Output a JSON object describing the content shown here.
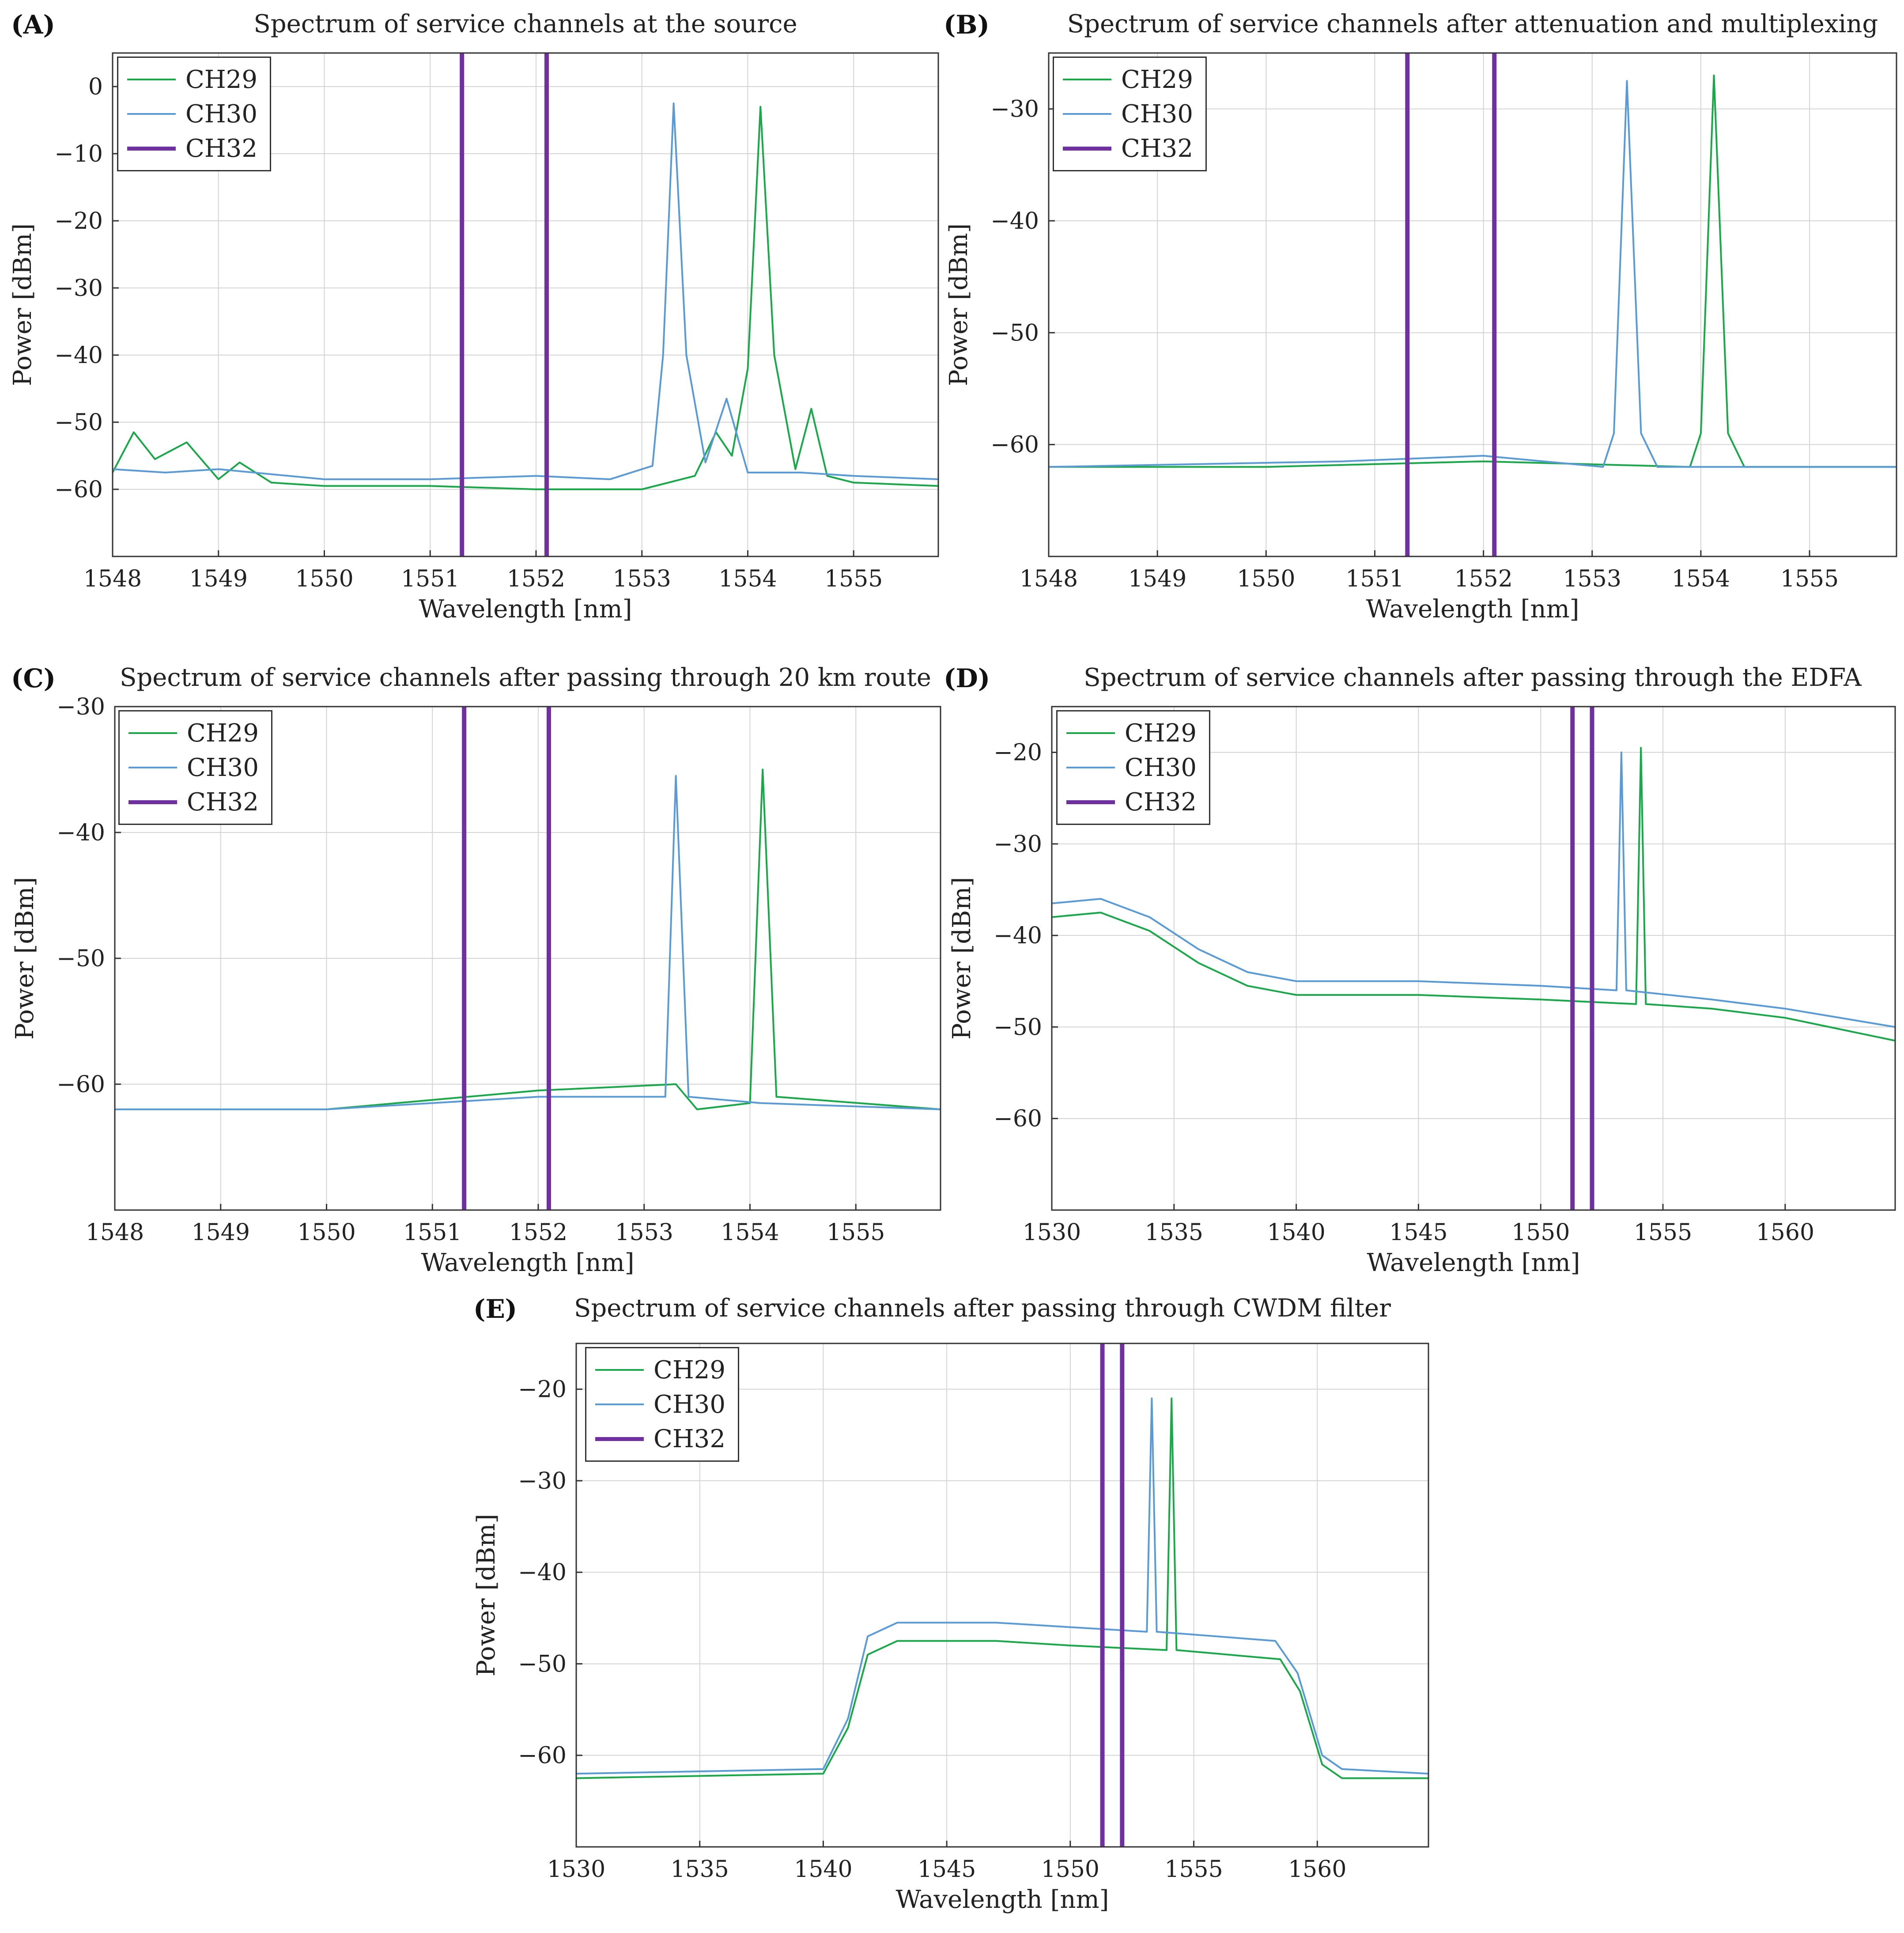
{
  "series_styles": {
    "CH29": {
      "color": "#1aa84a",
      "kind": "trace"
    },
    "CH30": {
      "color": "#5b9bd5",
      "kind": "trace"
    },
    "CH32": {
      "color": "#7030a0",
      "kind": "vline"
    }
  },
  "chart_data": [
    {
      "panel": "(A)",
      "type": "line",
      "title": "Spectrum of service channels at the source",
      "xlabel": "Wavelength [nm]",
      "ylabel": "Power [dBm]",
      "xlim": [
        1548,
        1555.8
      ],
      "ylim": [
        -70,
        5
      ],
      "xticks": [
        1548,
        1549,
        1550,
        1551,
        1552,
        1553,
        1554,
        1555
      ],
      "yticks": [
        0,
        -10,
        -20,
        -30,
        -40,
        -50,
        -60
      ],
      "grid": true,
      "legend": [
        "CH29",
        "CH30",
        "CH32"
      ],
      "legend_position": "top-left",
      "series": [
        {
          "name": "CH29",
          "values": [
            {
              "x": 1548.0,
              "y": -57.5
            },
            {
              "x": 1548.2,
              "y": -51.5
            },
            {
              "x": 1548.4,
              "y": -55.5
            },
            {
              "x": 1548.7,
              "y": -53.0
            },
            {
              "x": 1549.0,
              "y": -58.5
            },
            {
              "x": 1549.2,
              "y": -56.0
            },
            {
              "x": 1549.5,
              "y": -59.0
            },
            {
              "x": 1550.0,
              "y": -59.5
            },
            {
              "x": 1551.0,
              "y": -59.5
            },
            {
              "x": 1552.0,
              "y": -60.0
            },
            {
              "x": 1553.0,
              "y": -60.0
            },
            {
              "x": 1553.5,
              "y": -58.0
            },
            {
              "x": 1553.7,
              "y": -51.5
            },
            {
              "x": 1553.85,
              "y": -55.0
            },
            {
              "x": 1554.0,
              "y": -42.0
            },
            {
              "x": 1554.12,
              "y": -3.0
            },
            {
              "x": 1554.25,
              "y": -40.0
            },
            {
              "x": 1554.45,
              "y": -57.0
            },
            {
              "x": 1554.6,
              "y": -48.0
            },
            {
              "x": 1554.75,
              "y": -58.0
            },
            {
              "x": 1555.0,
              "y": -59.0
            },
            {
              "x": 1555.8,
              "y": -59.5
            }
          ]
        },
        {
          "name": "CH30",
          "values": [
            {
              "x": 1548.0,
              "y": -57.0
            },
            {
              "x": 1548.5,
              "y": -57.5
            },
            {
              "x": 1549.0,
              "y": -57.0
            },
            {
              "x": 1550.0,
              "y": -58.5
            },
            {
              "x": 1551.0,
              "y": -58.5
            },
            {
              "x": 1552.0,
              "y": -58.0
            },
            {
              "x": 1552.7,
              "y": -58.5
            },
            {
              "x": 1553.1,
              "y": -56.5
            },
            {
              "x": 1553.2,
              "y": -40.0
            },
            {
              "x": 1553.3,
              "y": -2.5
            },
            {
              "x": 1553.42,
              "y": -40.0
            },
            {
              "x": 1553.6,
              "y": -56.0
            },
            {
              "x": 1553.8,
              "y": -46.5
            },
            {
              "x": 1554.0,
              "y": -57.5
            },
            {
              "x": 1554.5,
              "y": -57.5
            },
            {
              "x": 1555.0,
              "y": -58.0
            },
            {
              "x": 1555.8,
              "y": -58.5
            }
          ]
        },
        {
          "name": "CH32",
          "vlines": [
            1551.3,
            1552.1
          ]
        }
      ]
    },
    {
      "panel": "(B)",
      "type": "line",
      "title": "Spectrum of service channels after attenuation and multiplexing",
      "xlabel": "Wavelength [nm]",
      "ylabel": "Power [dBm]",
      "xlim": [
        1548,
        1555.8
      ],
      "ylim": [
        -70,
        -25
      ],
      "xticks": [
        1548,
        1549,
        1550,
        1551,
        1552,
        1553,
        1554,
        1555
      ],
      "yticks": [
        -30,
        -40,
        -50,
        -60
      ],
      "grid": true,
      "legend": [
        "CH29",
        "CH30",
        "CH32"
      ],
      "legend_position": "top-left",
      "series": [
        {
          "name": "CH29",
          "values": [
            {
              "x": 1548.0,
              "y": -62.0
            },
            {
              "x": 1550.0,
              "y": -62.0
            },
            {
              "x": 1552.0,
              "y": -61.5
            },
            {
              "x": 1553.9,
              "y": -62.0
            },
            {
              "x": 1554.0,
              "y": -59.0
            },
            {
              "x": 1554.12,
              "y": -27.0
            },
            {
              "x": 1554.25,
              "y": -59.0
            },
            {
              "x": 1554.4,
              "y": -62.0
            },
            {
              "x": 1555.8,
              "y": -62.0
            }
          ]
        },
        {
          "name": "CH30",
          "values": [
            {
              "x": 1548.0,
              "y": -62.0
            },
            {
              "x": 1550.7,
              "y": -61.5
            },
            {
              "x": 1552.0,
              "y": -61.0
            },
            {
              "x": 1553.1,
              "y": -62.0
            },
            {
              "x": 1553.2,
              "y": -59.0
            },
            {
              "x": 1553.32,
              "y": -27.5
            },
            {
              "x": 1553.45,
              "y": -59.0
            },
            {
              "x": 1553.6,
              "y": -62.0
            },
            {
              "x": 1555.8,
              "y": -62.0
            }
          ]
        },
        {
          "name": "CH32",
          "vlines": [
            1551.3,
            1552.1
          ]
        }
      ]
    },
    {
      "panel": "(C)",
      "type": "line",
      "title": "Spectrum of service channels after passing through 20 km route",
      "xlabel": "Wavelength [nm]",
      "ylabel": "Power [dBm]",
      "xlim": [
        1548,
        1555.8
      ],
      "ylim": [
        -70,
        -30
      ],
      "xticks": [
        1548,
        1549,
        1550,
        1551,
        1552,
        1553,
        1554,
        1555
      ],
      "yticks": [
        -30,
        -40,
        -50,
        -60
      ],
      "grid": true,
      "legend": [
        "CH29",
        "CH30",
        "CH32"
      ],
      "legend_position": "top-left",
      "series": [
        {
          "name": "CH29",
          "values": [
            {
              "x": 1548.0,
              "y": -62.0
            },
            {
              "x": 1550.0,
              "y": -62.0
            },
            {
              "x": 1552.0,
              "y": -60.5
            },
            {
              "x": 1553.3,
              "y": -60.0
            },
            {
              "x": 1553.5,
              "y": -62.0
            },
            {
              "x": 1554.0,
              "y": -61.5
            },
            {
              "x": 1554.12,
              "y": -35.0
            },
            {
              "x": 1554.25,
              "y": -61.0
            },
            {
              "x": 1555.8,
              "y": -62.0
            }
          ]
        },
        {
          "name": "CH30",
          "values": [
            {
              "x": 1548.0,
              "y": -62.0
            },
            {
              "x": 1550.0,
              "y": -62.0
            },
            {
              "x": 1552.0,
              "y": -61.0
            },
            {
              "x": 1553.2,
              "y": -61.0
            },
            {
              "x": 1553.3,
              "y": -35.5
            },
            {
              "x": 1553.42,
              "y": -61.0
            },
            {
              "x": 1554.1,
              "y": -61.5
            },
            {
              "x": 1555.8,
              "y": -62.0
            }
          ]
        },
        {
          "name": "CH32",
          "vlines": [
            1551.3,
            1552.1
          ]
        }
      ]
    },
    {
      "panel": "(D)",
      "type": "line",
      "title": "Spectrum of service channels after passing through the EDFA",
      "xlabel": "Wavelength [nm]",
      "ylabel": "Power [dBm]",
      "xlim": [
        1530,
        1564.5
      ],
      "ylim": [
        -70,
        -15
      ],
      "xticks": [
        1530,
        1535,
        1540,
        1545,
        1550,
        1555,
        1560
      ],
      "yticks": [
        -20,
        -30,
        -40,
        -50,
        -60
      ],
      "grid": true,
      "legend": [
        "CH29",
        "CH30",
        "CH32"
      ],
      "legend_position": "top-left",
      "series": [
        {
          "name": "CH29",
          "values": [
            {
              "x": 1530.0,
              "y": -38.0
            },
            {
              "x": 1532.0,
              "y": -37.5
            },
            {
              "x": 1534.0,
              "y": -39.5
            },
            {
              "x": 1536.0,
              "y": -43.0
            },
            {
              "x": 1538.0,
              "y": -45.5
            },
            {
              "x": 1540.0,
              "y": -46.5
            },
            {
              "x": 1545.0,
              "y": -46.5
            },
            {
              "x": 1550.0,
              "y": -47.0
            },
            {
              "x": 1553.9,
              "y": -47.5
            },
            {
              "x": 1554.1,
              "y": -19.5
            },
            {
              "x": 1554.3,
              "y": -47.5
            },
            {
              "x": 1557.0,
              "y": -48.0
            },
            {
              "x": 1560.0,
              "y": -49.0
            },
            {
              "x": 1564.5,
              "y": -51.5
            }
          ]
        },
        {
          "name": "CH30",
          "values": [
            {
              "x": 1530.0,
              "y": -36.5
            },
            {
              "x": 1532.0,
              "y": -36.0
            },
            {
              "x": 1534.0,
              "y": -38.0
            },
            {
              "x": 1536.0,
              "y": -41.5
            },
            {
              "x": 1538.0,
              "y": -44.0
            },
            {
              "x": 1540.0,
              "y": -45.0
            },
            {
              "x": 1545.0,
              "y": -45.0
            },
            {
              "x": 1550.0,
              "y": -45.5
            },
            {
              "x": 1553.1,
              "y": -46.0
            },
            {
              "x": 1553.3,
              "y": -20.0
            },
            {
              "x": 1553.5,
              "y": -46.0
            },
            {
              "x": 1557.0,
              "y": -47.0
            },
            {
              "x": 1560.0,
              "y": -48.0
            },
            {
              "x": 1564.5,
              "y": -50.0
            }
          ]
        },
        {
          "name": "CH32",
          "vlines": [
            1551.3,
            1552.1
          ]
        }
      ]
    },
    {
      "panel": "(E)",
      "type": "line",
      "title": "Spectrum of service channels after passing through CWDM filter",
      "xlabel": "Wavelength [nm]",
      "ylabel": "Power [dBm]",
      "xlim": [
        1530,
        1564.5
      ],
      "ylim": [
        -70,
        -15
      ],
      "xticks": [
        1530,
        1535,
        1540,
        1545,
        1550,
        1555,
        1560
      ],
      "yticks": [
        -20,
        -30,
        -40,
        -50,
        -60
      ],
      "grid": true,
      "legend": [
        "CH29",
        "CH30",
        "CH32"
      ],
      "legend_position": "top-left",
      "series": [
        {
          "name": "CH29",
          "values": [
            {
              "x": 1530.0,
              "y": -62.5
            },
            {
              "x": 1540.0,
              "y": -62.0
            },
            {
              "x": 1541.0,
              "y": -57.0
            },
            {
              "x": 1541.8,
              "y": -49.0
            },
            {
              "x": 1543.0,
              "y": -47.5
            },
            {
              "x": 1547.0,
              "y": -47.5
            },
            {
              "x": 1550.0,
              "y": -48.0
            },
            {
              "x": 1553.9,
              "y": -48.5
            },
            {
              "x": 1554.1,
              "y": -21.0
            },
            {
              "x": 1554.3,
              "y": -48.5
            },
            {
              "x": 1558.5,
              "y": -49.5
            },
            {
              "x": 1559.3,
              "y": -53.0
            },
            {
              "x": 1560.2,
              "y": -61.0
            },
            {
              "x": 1561.0,
              "y": -62.5
            },
            {
              "x": 1564.5,
              "y": -62.5
            }
          ]
        },
        {
          "name": "CH30",
          "values": [
            {
              "x": 1530.0,
              "y": -62.0
            },
            {
              "x": 1540.0,
              "y": -61.5
            },
            {
              "x": 1541.0,
              "y": -56.0
            },
            {
              "x": 1541.8,
              "y": -47.0
            },
            {
              "x": 1543.0,
              "y": -45.5
            },
            {
              "x": 1547.0,
              "y": -45.5
            },
            {
              "x": 1550.0,
              "y": -46.0
            },
            {
              "x": 1553.1,
              "y": -46.5
            },
            {
              "x": 1553.3,
              "y": -21.0
            },
            {
              "x": 1553.5,
              "y": -46.5
            },
            {
              "x": 1558.3,
              "y": -47.5
            },
            {
              "x": 1559.2,
              "y": -51.0
            },
            {
              "x": 1560.2,
              "y": -60.0
            },
            {
              "x": 1561.0,
              "y": -61.5
            },
            {
              "x": 1564.5,
              "y": -62.0
            }
          ]
        },
        {
          "name": "CH32",
          "vlines": [
            1551.3,
            1552.1
          ]
        }
      ]
    }
  ]
}
